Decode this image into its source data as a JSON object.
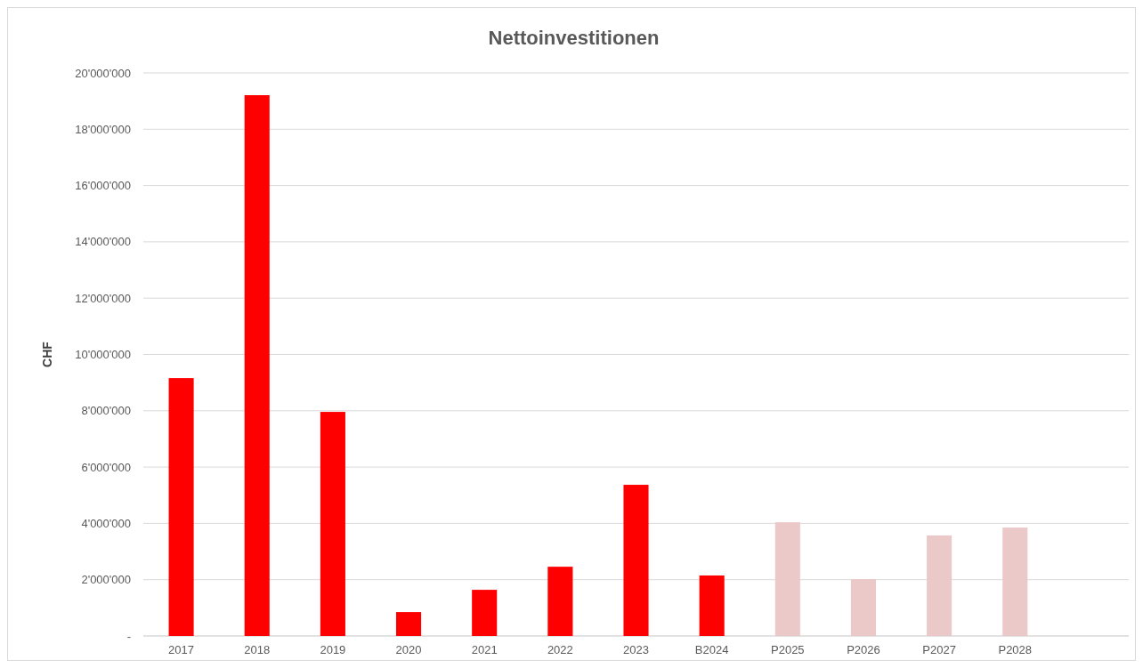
{
  "chart_data": {
    "type": "bar",
    "title": "Nettoinvestitionen",
    "ylabel": "CHF",
    "categories": [
      "2017",
      "2018",
      "2019",
      "2020",
      "2021",
      "2022",
      "2023",
      "B2024",
      "P2025",
      "P2026",
      "P2027",
      "P2028",
      null
    ],
    "values": [
      9160000,
      19210000,
      7960000,
      850000,
      1640000,
      2460000,
      5370000,
      2150000,
      4040000,
      2020000,
      3570000,
      3850000,
      null
    ],
    "colors": [
      "#ff0000",
      "#ff0000",
      "#ff0000",
      "#ff0000",
      "#ff0000",
      "#ff0000",
      "#ff0000",
      "#ff0000",
      "#ecc9c9",
      "#ecc9c9",
      "#ecc9c9",
      "#ecc9c9",
      null
    ],
    "ylim": [
      0,
      20000000
    ],
    "yticks": [
      {
        "value": 0,
        "label": "-"
      },
      {
        "value": 2000000,
        "label": "2'000'000"
      },
      {
        "value": 4000000,
        "label": "4'000'000"
      },
      {
        "value": 6000000,
        "label": "6'000'000"
      },
      {
        "value": 8000000,
        "label": "8'000'000"
      },
      {
        "value": 10000000,
        "label": "10'000'000"
      },
      {
        "value": 12000000,
        "label": "12'000'000"
      },
      {
        "value": 14000000,
        "label": "14'000'000"
      },
      {
        "value": 16000000,
        "label": "16'000'000"
      },
      {
        "value": 18000000,
        "label": "18'000'000"
      },
      {
        "value": 20000000,
        "label": "20'000'000"
      }
    ],
    "grid": "y"
  }
}
